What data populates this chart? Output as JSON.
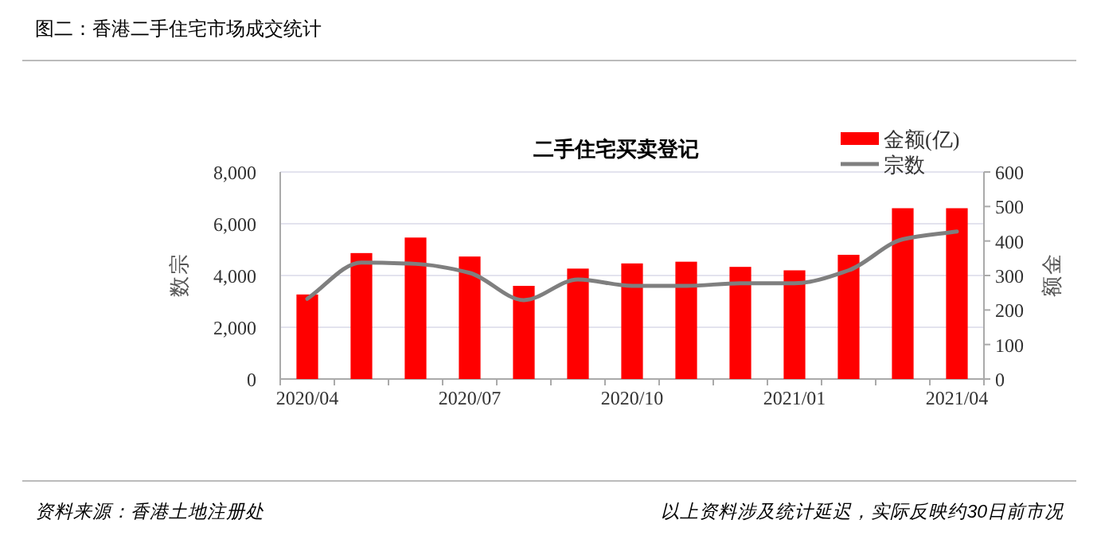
{
  "chart_data": {
    "type": "bar",
    "title": "图二：香港二手住宅市场成交统计",
    "subtitle": "二手住宅买卖登记",
    "categories": [
      "2020/04",
      null,
      null,
      "2020/07",
      null,
      null,
      "2020/10",
      null,
      null,
      "2021/01",
      null,
      null,
      "2021/04"
    ],
    "series": [
      {
        "name": "金额(亿)",
        "axis": "y2",
        "color": "#ff0000",
        "values": [
          245,
          365,
          410,
          355,
          270,
          320,
          335,
          340,
          325,
          315,
          360,
          495,
          495
        ]
      },
      {
        "name": "宗数",
        "type": "line",
        "color": "#7f7f7f",
        "values": [
          3100,
          4500,
          4450,
          4100,
          3050,
          3850,
          3600,
          3600,
          3700,
          3700,
          4200,
          5400,
          5700
        ]
      }
    ],
    "ylabel": "宗数",
    "y2label": "金额",
    "ylim": [
      0,
      8000
    ],
    "yticks": [
      {
        "value": 0,
        "label": "0"
      },
      {
        "value": 2000,
        "label": "2,000"
      },
      {
        "value": 4000,
        "label": "4,000"
      },
      {
        "value": 6000,
        "label": "6,000"
      },
      {
        "value": 8000,
        "label": "8,000"
      }
    ],
    "y2lim": [
      0,
      600
    ],
    "y2ticks": [
      0,
      100,
      200,
      300,
      400,
      500,
      600
    ],
    "grid": "y",
    "legend": "top right",
    "marker": "none",
    "line_style": "solid",
    "annotations": [
      "资料来源：香港土地注册处",
      "以上资料涉及统计延迟，实际反映约30日前市况"
    ]
  }
}
